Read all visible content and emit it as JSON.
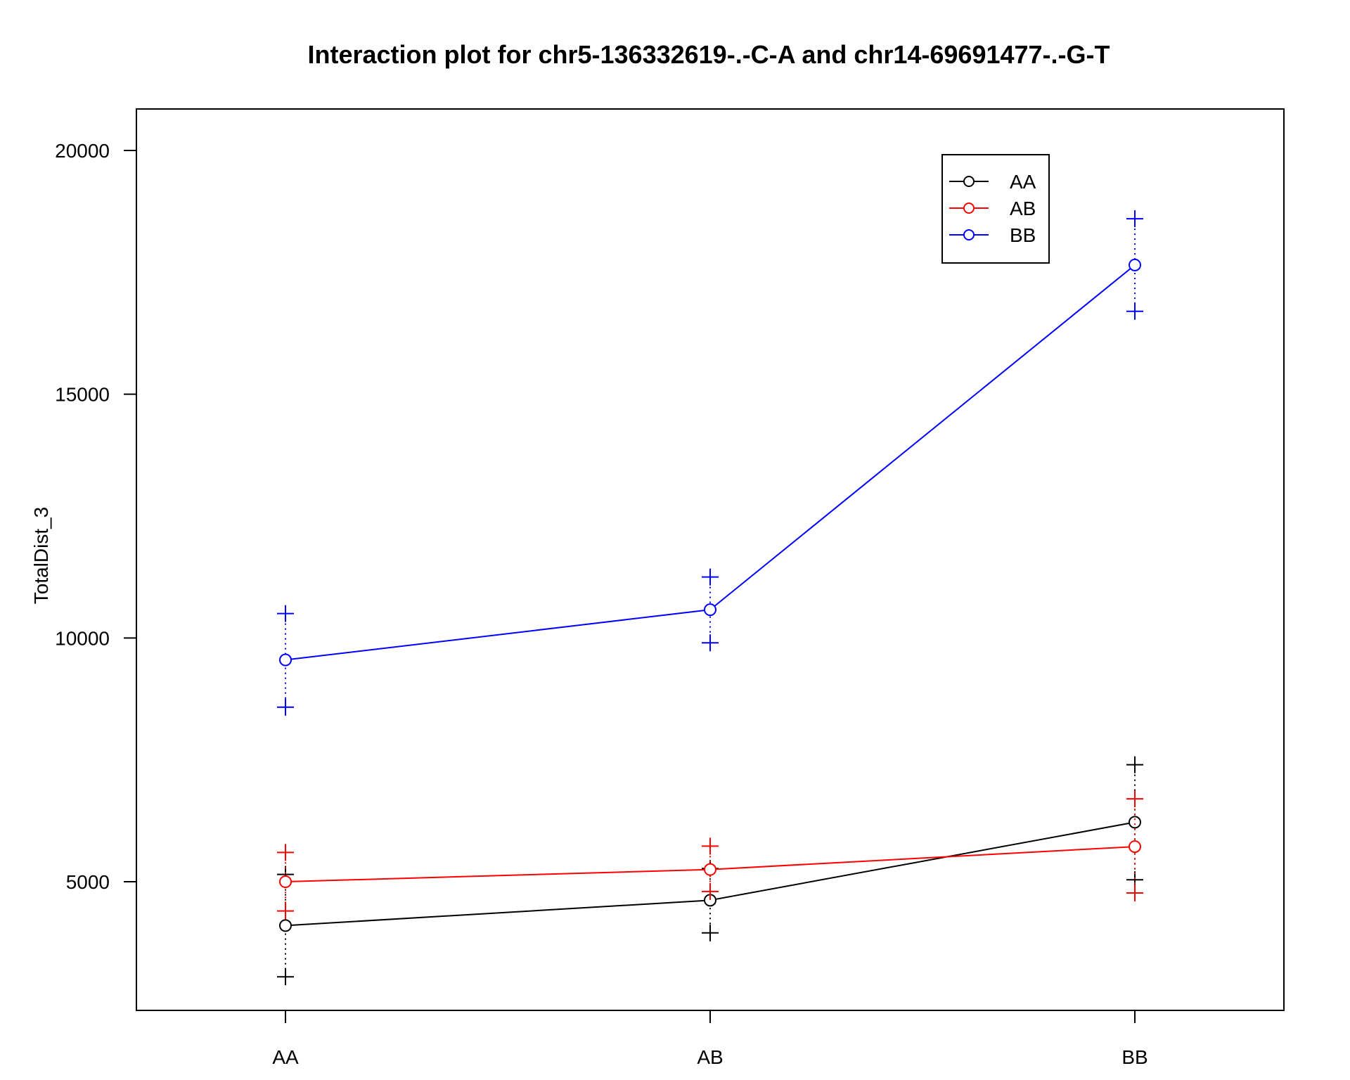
{
  "chart_data": {
    "type": "line",
    "title": "Interaction plot for chr5-136332619-.-C-A and chr14-69691477-.-G-T",
    "xlabel": "",
    "ylabel": "TotalDist_3",
    "categories": [
      "AA",
      "AB",
      "BB"
    ],
    "yticks": [
      5000,
      10000,
      15000,
      20000
    ],
    "ylim": [
      2400,
      20800
    ],
    "grid": false,
    "legend_position": "top-right",
    "series": [
      {
        "name": "AA",
        "color": "#000000",
        "mean": [
          4100,
          4620,
          6220
        ],
        "upper": [
          5150,
          5270,
          7400
        ],
        "lower": [
          3050,
          3950,
          5040
        ]
      },
      {
        "name": "AB",
        "color": "#ff0000",
        "mean": [
          5000,
          5250,
          5720
        ],
        "upper": [
          5600,
          5730,
          6700
        ],
        "lower": [
          4400,
          4800,
          4770
        ]
      },
      {
        "name": "BB",
        "color": "#0000ff",
        "mean": [
          9550,
          10580,
          17650
        ],
        "upper": [
          10500,
          11250,
          18600
        ],
        "lower": [
          8580,
          9900,
          16700
        ]
      }
    ]
  }
}
